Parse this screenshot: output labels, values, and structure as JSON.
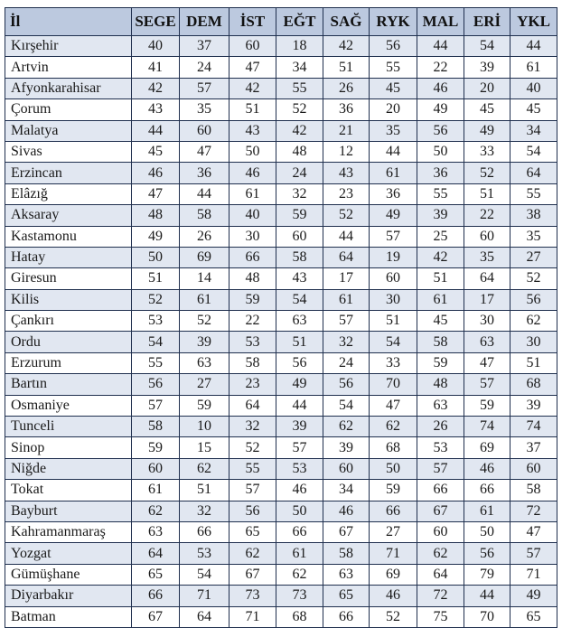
{
  "table": {
    "headers": [
      "İl",
      "SEGE",
      "DEM",
      "İST",
      "EĞT",
      "SAĞ",
      "RYK",
      "MAL",
      "ERİ",
      "YKL"
    ],
    "rows": [
      [
        "Kırşehir",
        "40",
        "37",
        "60",
        "18",
        "42",
        "56",
        "44",
        "54",
        "44"
      ],
      [
        "Artvin",
        "41",
        "24",
        "47",
        "34",
        "51",
        "55",
        "22",
        "39",
        "61"
      ],
      [
        "Afyonkarahisar",
        "42",
        "57",
        "42",
        "55",
        "26",
        "45",
        "46",
        "20",
        "40"
      ],
      [
        "Çorum",
        "43",
        "35",
        "51",
        "52",
        "36",
        "20",
        "49",
        "45",
        "45"
      ],
      [
        "Malatya",
        "44",
        "60",
        "43",
        "42",
        "21",
        "35",
        "56",
        "49",
        "34"
      ],
      [
        "Sivas",
        "45",
        "47",
        "50",
        "48",
        "12",
        "44",
        "50",
        "33",
        "54"
      ],
      [
        "Erzincan",
        "46",
        "36",
        "46",
        "24",
        "43",
        "61",
        "36",
        "52",
        "64"
      ],
      [
        "Elâzığ",
        "47",
        "44",
        "61",
        "32",
        "23",
        "36",
        "55",
        "51",
        "55"
      ],
      [
        "Aksaray",
        "48",
        "58",
        "40",
        "59",
        "52",
        "49",
        "39",
        "22",
        "38"
      ],
      [
        "Kastamonu",
        "49",
        "26",
        "30",
        "60",
        "44",
        "57",
        "25",
        "60",
        "35"
      ],
      [
        "Hatay",
        "50",
        "69",
        "66",
        "58",
        "64",
        "19",
        "42",
        "35",
        "27"
      ],
      [
        "Giresun",
        "51",
        "14",
        "48",
        "43",
        "17",
        "60",
        "51",
        "64",
        "52"
      ],
      [
        "Kilis",
        "52",
        "61",
        "59",
        "54",
        "61",
        "30",
        "61",
        "17",
        "56"
      ],
      [
        "Çankırı",
        "53",
        "52",
        "22",
        "63",
        "57",
        "51",
        "45",
        "30",
        "62"
      ],
      [
        "Ordu",
        "54",
        "39",
        "53",
        "51",
        "32",
        "54",
        "58",
        "63",
        "30"
      ],
      [
        "Erzurum",
        "55",
        "63",
        "58",
        "56",
        "24",
        "33",
        "59",
        "47",
        "51"
      ],
      [
        "Bartın",
        "56",
        "27",
        "23",
        "49",
        "56",
        "70",
        "48",
        "57",
        "68"
      ],
      [
        "Osmaniye",
        "57",
        "59",
        "64",
        "44",
        "54",
        "47",
        "63",
        "59",
        "39"
      ],
      [
        "Tunceli",
        "58",
        "10",
        "32",
        "39",
        "62",
        "62",
        "26",
        "74",
        "74"
      ],
      [
        "Sinop",
        "59",
        "15",
        "52",
        "57",
        "39",
        "68",
        "53",
        "69",
        "37"
      ],
      [
        "Niğde",
        "60",
        "62",
        "55",
        "53",
        "60",
        "50",
        "57",
        "46",
        "60"
      ],
      [
        "Tokat",
        "61",
        "51",
        "57",
        "46",
        "34",
        "59",
        "66",
        "66",
        "58"
      ],
      [
        "Bayburt",
        "62",
        "32",
        "56",
        "50",
        "46",
        "66",
        "67",
        "61",
        "72"
      ],
      [
        "Kahramanmaraş",
        "63",
        "66",
        "65",
        "66",
        "67",
        "27",
        "60",
        "50",
        "47"
      ],
      [
        "Yozgat",
        "64",
        "53",
        "62",
        "61",
        "58",
        "71",
        "62",
        "56",
        "57"
      ],
      [
        "Gümüşhane",
        "65",
        "54",
        "67",
        "62",
        "63",
        "69",
        "64",
        "79",
        "71"
      ],
      [
        "Diyarbakır",
        "66",
        "71",
        "73",
        "73",
        "65",
        "46",
        "72",
        "44",
        "49"
      ],
      [
        "Batman",
        "67",
        "64",
        "71",
        "68",
        "66",
        "52",
        "75",
        "70",
        "65"
      ]
    ]
  },
  "colors": {
    "header_bg": "#bcc9df",
    "row_alt_bg": "#e1e7f1",
    "border": "#1f2f4e"
  }
}
